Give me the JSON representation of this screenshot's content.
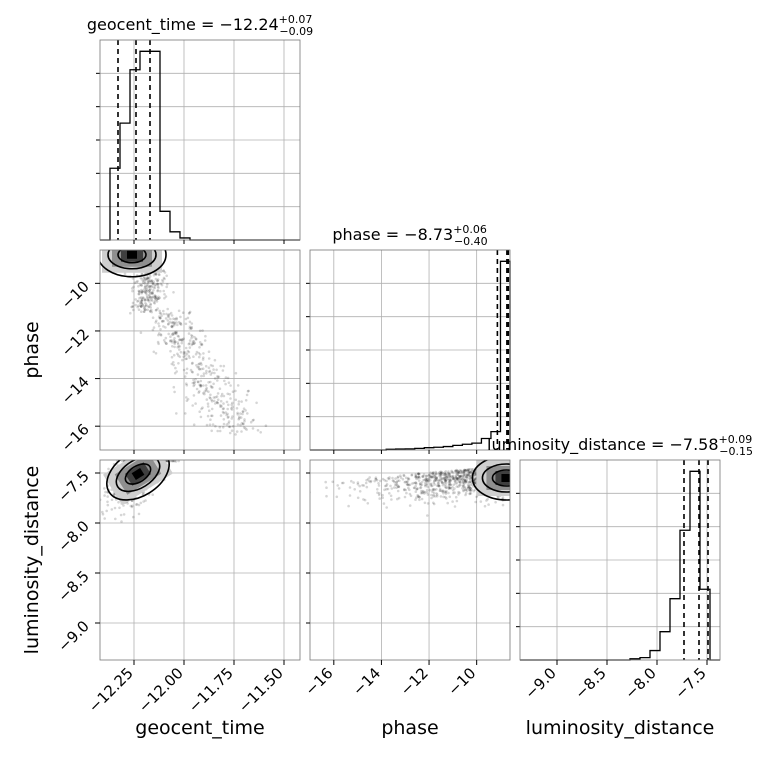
{
  "chart_data": {
    "type": "corner",
    "parameters": [
      "geocent_time",
      "phase",
      "luminosity_distance"
    ],
    "axis_labels": {
      "x": [
        "geocent_time",
        "phase",
        "luminosity_distance"
      ],
      "y": [
        "phase",
        "luminosity_distance"
      ]
    },
    "ranges": {
      "geocent_time": [
        -12.42,
        -11.42
      ],
      "phase": [
        -17,
        -8.6
      ],
      "luminosity_distance": [
        -9.37,
        -7.37
      ]
    },
    "ticks": {
      "geocent_time": {
        "values": [
          -12.25,
          -12.0,
          -11.75,
          -11.5
        ],
        "labels": [
          "−12.25",
          "−12.00",
          "−11.75",
          "−11.50"
        ]
      },
      "phase": {
        "values": [
          -16,
          -14,
          -12,
          -10
        ],
        "labels": [
          "−16",
          "−14",
          "−12",
          "−10"
        ]
      },
      "luminosity_distance": {
        "values": [
          -9.0,
          -8.5,
          -8.0,
          -7.5
        ],
        "labels": [
          "−9.0",
          "−8.5",
          "−8.0",
          "−7.5"
        ]
      }
    },
    "grid": true,
    "diagonal": [
      {
        "param": "geocent_time",
        "title": {
          "prefix": "geocent_time = −12.24",
          "sup": "+0.07",
          "sub": "−0.09"
        },
        "quantiles": [
          -12.33,
          -12.24,
          -12.17
        ],
        "hist_edges": [
          -12.42,
          -12.37,
          -12.32,
          -12.27,
          -12.22,
          -12.17,
          -12.12,
          -12.07,
          -12.02,
          -11.97,
          -11.92,
          -11.87,
          -11.82,
          -11.77,
          -11.72,
          -11.67,
          -11.62,
          -11.57,
          -11.52,
          -11.47,
          -11.42
        ],
        "hist_counts": [
          0,
          35,
          57,
          83,
          92,
          92,
          14,
          4,
          1,
          0,
          0,
          0,
          0,
          0,
          0,
          0,
          0,
          0,
          0,
          0
        ]
      },
      {
        "param": "phase",
        "title": {
          "prefix": "phase = −8.73",
          "sup": "+0.06",
          "sub": "−0.40"
        },
        "quantiles": [
          -9.13,
          -8.73,
          -8.67
        ],
        "hist_edges": [
          -17.0,
          -16.6,
          -16.2,
          -15.8,
          -15.4,
          -15.0,
          -14.6,
          -14.2,
          -13.8,
          -13.4,
          -13.0,
          -12.6,
          -12.2,
          -11.8,
          -11.4,
          -11.0,
          -10.6,
          -10.2,
          -9.8,
          -9.4,
          -9.0,
          -8.8,
          -8.6
        ],
        "hist_counts": [
          0,
          0,
          0,
          0,
          0,
          0,
          0,
          0,
          0.3,
          0.4,
          0.5,
          0.7,
          1.0,
          1.2,
          1.5,
          2.0,
          2.5,
          3,
          5,
          8,
          82,
          82
        ]
      },
      {
        "param": "luminosity_distance",
        "title": {
          "prefix": "luminosity_distance = −7.58",
          "sup": "+0.09",
          "sub": "−0.15"
        },
        "quantiles": [
          -7.73,
          -7.58,
          -7.49
        ],
        "hist_edges": [
          -9.37,
          -9.27,
          -9.17,
          -9.07,
          -8.97,
          -8.87,
          -8.77,
          -8.67,
          -8.57,
          -8.47,
          -8.37,
          -8.27,
          -8.17,
          -8.07,
          -7.97,
          -7.87,
          -7.77,
          -7.67,
          -7.57,
          -7.47,
          -7.37
        ],
        "hist_counts": [
          0,
          0,
          0,
          0,
          0,
          0,
          0,
          0,
          0,
          0,
          0,
          0.5,
          1,
          4,
          12,
          26,
          55,
          80,
          30,
          0
        ]
      }
    ],
    "pairs": [
      {
        "x": "geocent_time",
        "y": "phase",
        "peak": [
          -12.26,
          -8.8
        ]
      },
      {
        "x": "geocent_time",
        "y": "luminosity_distance",
        "peak": [
          -12.23,
          -7.51
        ]
      },
      {
        "x": "phase",
        "y": "luminosity_distance",
        "peak": [
          -8.75,
          -7.55
        ]
      }
    ],
    "colors": {
      "line": "#000000",
      "grid": "#b0b0b0",
      "points": "#000000",
      "density": [
        "#cfcfcf",
        "#8f8f8f",
        "#3f3f3f",
        "#000000"
      ]
    }
  }
}
